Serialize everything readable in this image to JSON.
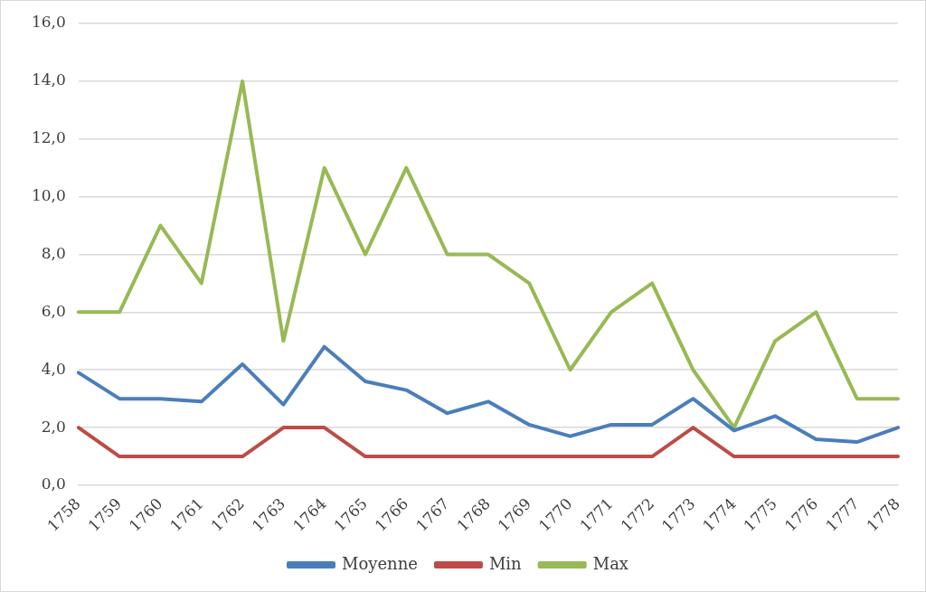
{
  "chart_data": {
    "type": "line",
    "categories": [
      "1758",
      "1759",
      "1760",
      "1761",
      "1762",
      "1763",
      "1764",
      "1765",
      "1766",
      "1767",
      "1768",
      "1769",
      "1770",
      "1771",
      "1772",
      "1773",
      "1774",
      "1775",
      "1776",
      "1777",
      "1778"
    ],
    "series": [
      {
        "name": "Moyenne",
        "color": "#4a7ebb",
        "values": [
          3.9,
          3.0,
          3.0,
          2.9,
          4.2,
          2.8,
          4.8,
          3.6,
          3.3,
          2.5,
          2.9,
          2.1,
          1.7,
          2.1,
          2.1,
          3.0,
          1.9,
          2.4,
          1.6,
          1.5,
          2.0
        ]
      },
      {
        "name": "Min",
        "color": "#be4b48",
        "values": [
          2,
          1,
          1,
          1,
          1,
          2,
          2,
          1,
          1,
          1,
          1,
          1,
          1,
          1,
          1,
          2,
          1,
          1,
          1,
          1,
          1
        ]
      },
      {
        "name": "Max",
        "color": "#98b954",
        "values": [
          6,
          6,
          9,
          7,
          14,
          5,
          11,
          8,
          11,
          8,
          8,
          7,
          4,
          6,
          7,
          4,
          2,
          5,
          6,
          3,
          3
        ]
      }
    ],
    "ylim": [
      0,
      16
    ],
    "yticks": [
      {
        "value": 0,
        "label": "0,0"
      },
      {
        "value": 2,
        "label": "2,0"
      },
      {
        "value": 4,
        "label": "4,0"
      },
      {
        "value": 6,
        "label": "6,0"
      },
      {
        "value": 8,
        "label": "8,0"
      },
      {
        "value": 10,
        "label": "10,0"
      },
      {
        "value": 12,
        "label": "12,0"
      },
      {
        "value": 14,
        "label": "14,0"
      },
      {
        "value": 16,
        "label": "16,0"
      }
    ],
    "grid": "y",
    "legend": "bottom",
    "marker": "none",
    "line_style": "solid"
  }
}
